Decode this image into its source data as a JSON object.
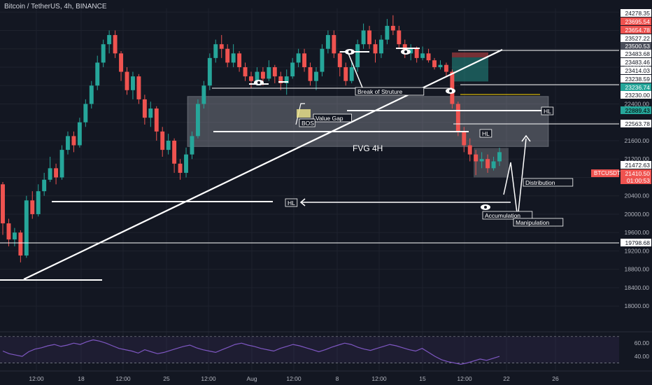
{
  "header": {
    "title": "Bitcoin / TetherUS, 4h, BINANCE"
  },
  "colors": {
    "background": "#131722",
    "up": "#26a69a",
    "down": "#ef5350",
    "grid": "#1e222d",
    "rsi_line": "#7e57c2",
    "rsi_band": "#7e57c2",
    "fvg_zone": "#b2b5be",
    "white": "#ffffff",
    "label_bg": "#e0e3eb"
  },
  "chart_data": {
    "type": "candlestick",
    "title": "Bitcoin / TetherUS, 4h, BINANCE",
    "ylim": [
      17500,
      24480
    ],
    "y_ticks": [
      24400,
      24000,
      23600,
      23200,
      22800,
      22400,
      22000,
      21600,
      21200,
      20800,
      20400,
      20000,
      19600,
      19200,
      18800,
      18400,
      18000
    ],
    "x_ticks": [
      "12:00",
      "18",
      "12:00",
      "25",
      "12:00",
      "Aug",
      "12:00",
      "8",
      "12:00",
      "15",
      "12:00",
      "22",
      "26"
    ],
    "candles_approx": [
      [
        20650,
        19800,
        20700,
        19550
      ],
      [
        19800,
        19450,
        19900,
        19300
      ],
      [
        19450,
        19600,
        19700,
        19300
      ],
      [
        19600,
        19100,
        19650,
        18950
      ],
      [
        19100,
        20300,
        20400,
        19050
      ],
      [
        20300,
        20000,
        20500,
        19900
      ],
      [
        20000,
        20500,
        20650,
        19950
      ],
      [
        20500,
        20750,
        20900,
        20400
      ],
      [
        20750,
        21000,
        21250,
        20700
      ],
      [
        21000,
        20800,
        21100,
        20650
      ],
      [
        20800,
        21400,
        21500,
        20750
      ],
      [
        21400,
        21700,
        21800,
        21300
      ],
      [
        21700,
        21500,
        21800,
        21350
      ],
      [
        21500,
        22000,
        22100,
        21450
      ],
      [
        22000,
        22400,
        22500,
        21900
      ],
      [
        22400,
        22800,
        22900,
        22300
      ],
      [
        22800,
        23300,
        23450,
        22700
      ],
      [
        23300,
        23700,
        23800,
        23200
      ],
      [
        23700,
        23900,
        24000,
        23500
      ],
      [
        23900,
        23500,
        24000,
        23400
      ],
      [
        23500,
        23100,
        23550,
        22900
      ],
      [
        23100,
        22700,
        23200,
        22600
      ],
      [
        22700,
        23000,
        23100,
        22500
      ],
      [
        23000,
        22500,
        23050,
        22400
      ],
      [
        22500,
        22100,
        22600,
        21950
      ],
      [
        22100,
        22300,
        22450,
        21900
      ],
      [
        22300,
        21800,
        22350,
        21600
      ],
      [
        21800,
        21400,
        21900,
        21250
      ],
      [
        21400,
        21600,
        21750,
        21300
      ],
      [
        21600,
        21100,
        21650,
        20900
      ],
      [
        21100,
        20900,
        21200,
        20750
      ],
      [
        20900,
        21300,
        21450,
        20800
      ],
      [
        21300,
        21700,
        21800,
        21200
      ],
      [
        21700,
        22400,
        22500,
        21650
      ],
      [
        22400,
        22800,
        22900,
        22300
      ],
      [
        22800,
        23400,
        23500,
        22700
      ],
      [
        23400,
        23700,
        23800,
        23300
      ],
      [
        23700,
        23600,
        23900,
        23400
      ],
      [
        23600,
        23300,
        23700,
        23200
      ],
      [
        23300,
        23500,
        23700,
        23200
      ],
      [
        23500,
        23200,
        23550,
        23100
      ],
      [
        23200,
        23000,
        23300,
        22900
      ],
      [
        23000,
        22900,
        23100,
        22750
      ],
      [
        22900,
        23100,
        23200,
        22800
      ],
      [
        23100,
        22950,
        23200,
        22800
      ],
      [
        22950,
        23200,
        23350,
        22900
      ],
      [
        23200,
        23000,
        23250,
        22850
      ],
      [
        23000,
        22850,
        23100,
        22700
      ],
      [
        22850,
        23000,
        23150,
        22600
      ],
      [
        23000,
        23300,
        23400,
        22950
      ],
      [
        23300,
        23500,
        23600,
        23200
      ],
      [
        23500,
        23200,
        23600,
        23100
      ],
      [
        23200,
        22900,
        23300,
        22800
      ],
      [
        22900,
        23100,
        23200,
        22700
      ],
      [
        23100,
        23600,
        23700,
        23000
      ],
      [
        23600,
        23900,
        24000,
        23500
      ],
      [
        23900,
        23500,
        24000,
        23400
      ],
      [
        23500,
        23200,
        23550,
        23000
      ],
      [
        23200,
        22900,
        23300,
        22800
      ],
      [
        22900,
        23200,
        23350,
        22850
      ],
      [
        23200,
        23700,
        23800,
        23100
      ],
      [
        23700,
        24000,
        24150,
        23600
      ],
      [
        24000,
        23700,
        24100,
        23600
      ],
      [
        23700,
        23500,
        23800,
        23300
      ],
      [
        23500,
        23800,
        23900,
        23400
      ],
      [
        23800,
        24100,
        24250,
        23700
      ],
      [
        24100,
        24000,
        24330,
        23900
      ],
      [
        24000,
        23700,
        24100,
        23600
      ],
      [
        23700,
        23500,
        23800,
        23400
      ],
      [
        23500,
        23600,
        23700,
        23350
      ],
      [
        23600,
        23400,
        23650,
        23300
      ],
      [
        23400,
        23500,
        23650,
        23350
      ],
      [
        23500,
        23350,
        23600,
        23300
      ],
      [
        23350,
        23200,
        23400,
        23150
      ],
      [
        23200,
        23250,
        23350,
        23150
      ],
      [
        23250,
        23100,
        23300,
        23000
      ],
      [
        23100,
        22400,
        23150,
        22300
      ],
      [
        22400,
        21800,
        22450,
        21700
      ],
      [
        21800,
        21500,
        21900,
        21350
      ],
      [
        21500,
        21300,
        21650,
        21150
      ],
      [
        21300,
        21150,
        21400,
        20850
      ],
      [
        21150,
        21200,
        21350,
        21000
      ],
      [
        21200,
        21000,
        21300,
        20900
      ],
      [
        21000,
        21150,
        21250,
        20950
      ],
      [
        21150,
        21350,
        21450,
        21050
      ]
    ],
    "price_labels": [
      "24278.35",
      "23695.54",
      "23654.78",
      "23527.22",
      "23500.53",
      "23483.68",
      "23483.46",
      "23414.03",
      "23238.59",
      "23236.74",
      "23230.00",
      "22889.43",
      "22563.78",
      "21472.63",
      "21410.50",
      "01:00:53",
      "19798.68"
    ],
    "price_tag_values": [
      24278.35,
      23695.54,
      23654.78,
      23527.22,
      23500.53,
      23483.68,
      23483.46,
      23414.03,
      23238.59,
      23236.74,
      23230.0,
      22889.43,
      22563.78,
      21472.63,
      21410.5,
      21300,
      19798.68
    ],
    "symbol_tag": "BTCUSDT",
    "rsi": {
      "ticks": [
        "60.00",
        "40.00"
      ],
      "tick_values": [
        60,
        40
      ],
      "band": [
        30,
        70
      ],
      "values": [
        48,
        44,
        42,
        40,
        47,
        51,
        53,
        56,
        58,
        55,
        57,
        60,
        58,
        62,
        65,
        63,
        60,
        56,
        52,
        50,
        48,
        45,
        50,
        47,
        44,
        46,
        49,
        52,
        55,
        57,
        53,
        50,
        48,
        46,
        50,
        54,
        58,
        60,
        57,
        55,
        52,
        50,
        48,
        52,
        55,
        58,
        56,
        53,
        50,
        47,
        50,
        54,
        57,
        60,
        58,
        54,
        51,
        49,
        52,
        55,
        58,
        56,
        53,
        50,
        48,
        52,
        46,
        40,
        35,
        32,
        30,
        28,
        30,
        33,
        36,
        34,
        37,
        40
      ]
    },
    "annotations": {
      "fvg": "FVG 4H",
      "value_gap": "Value Gap",
      "bos": "BOS",
      "break_of_structure": "Break of Struture",
      "hl": "HL",
      "distribution": "Distribution",
      "accumulation": "Accumulation",
      "manipulation": "Manipulation"
    }
  }
}
